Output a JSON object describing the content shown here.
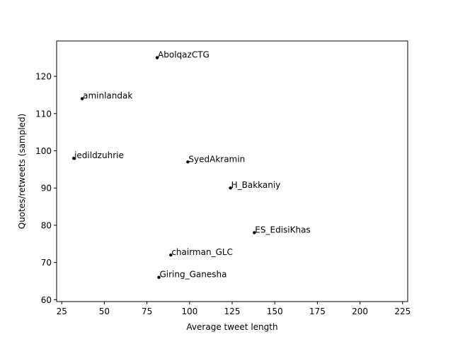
{
  "chart_data": {
    "type": "scatter",
    "title": "",
    "xlabel": "Average tweet length",
    "ylabel": "Quotes/retweets (sampled)",
    "xlim": [
      22,
      228
    ],
    "ylim": [
      59.5,
      129.5
    ],
    "xticks": [
      25,
      50,
      75,
      100,
      125,
      150,
      175,
      200,
      225
    ],
    "yticks": [
      60,
      70,
      80,
      90,
      100,
      110,
      120
    ],
    "grid": false,
    "points": [
      {
        "label": "AbolqazCTG",
        "x": 81,
        "y": 125
      },
      {
        "label": "aminlandak",
        "x": 37,
        "y": 114
      },
      {
        "label": "jedildzuhrie",
        "x": 32,
        "y": 98
      },
      {
        "label": "SyedAkramin",
        "x": 99,
        "y": 97
      },
      {
        "label": "H_Bakkaniy",
        "x": 124,
        "y": 90
      },
      {
        "label": "ES_EdisiKhas",
        "x": 138,
        "y": 78
      },
      {
        "label": "chairman_GLC",
        "x": 89,
        "y": 72
      },
      {
        "label": "Giring_Ganesha",
        "x": 82,
        "y": 66
      }
    ],
    "marker_color": "#000000"
  }
}
